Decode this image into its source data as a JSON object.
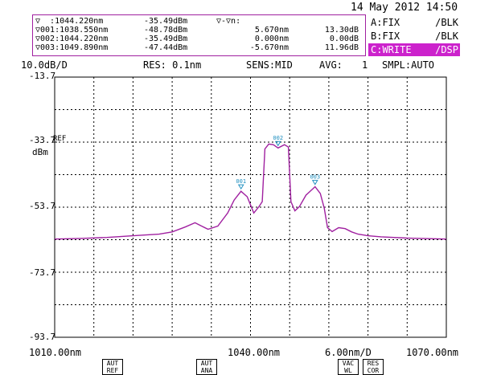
{
  "header": {
    "datetime": "14 May 2012 14:50"
  },
  "markers": {
    "rows": [
      {
        "label": "▽  :1044.220nm",
        "level": "-35.49dBm",
        "delta_wl": "▽-▽n:",
        "delta_lvl": ""
      },
      {
        "label": "▽001:1038.550nm",
        "level": "-48.78dBm",
        "delta_wl": "5.670nm",
        "delta_lvl": "13.30dB"
      },
      {
        "label": "▽002:1044.220nm",
        "level": "-35.49dBm",
        "delta_wl": "0.000nm",
        "delta_lvl": "0.00dB"
      },
      {
        "label": "▽003:1049.890nm",
        "level": "-47.44dBm",
        "delta_wl": "-5.670nm",
        "delta_lvl": "11.96dB"
      }
    ]
  },
  "traces": [
    {
      "mode": "A:FIX",
      "disp": "/BLK",
      "active": false
    },
    {
      "mode": "B:FIX",
      "disp": "/BLK",
      "active": false
    },
    {
      "mode": "C:WRITE",
      "disp": "/DSP",
      "active": true
    }
  ],
  "settings": {
    "scale": "10.0dB/D",
    "resolution": "RES: 0.1nm",
    "sensitivity": "SENS:MID",
    "average_label": "AVG:",
    "average_value": "1",
    "sampling": "SMPL:AUTO"
  },
  "axis": {
    "y_ticks": [
      "-13.7",
      "-33.7",
      "-53.7",
      "-73.7",
      "-93.7"
    ],
    "ref_label": "REF",
    "y_unit": "dBm",
    "x_start": "1010.00nm",
    "x_center": "1040.00nm",
    "x_span": "6.00nm/D",
    "x_stop": "1070.00nm"
  },
  "marker_tags": [
    "001",
    "002",
    "003"
  ],
  "softkeys": [
    {
      "line1": "AUT",
      "line2": "REF"
    },
    {
      "line1": "AUT",
      "line2": "ANA"
    },
    {
      "line1": "VAC",
      "line2": "WL"
    },
    {
      "line1": "RES",
      "line2": "COR"
    }
  ],
  "colors": {
    "trace": "#a020a0",
    "grid": "#000000",
    "marker": "#2090c0",
    "active_bg": "#cc22cc"
  },
  "chart_data": {
    "type": "line",
    "title": "",
    "xlabel": "",
    "ylabel": "dBm",
    "xlim": [
      1010.0,
      1070.0
    ],
    "ylim": [
      -93.7,
      -13.7
    ],
    "series": [
      {
        "name": "",
        "x": [
          1010,
          1014,
          1018,
          1022,
          1026,
          1028,
          1030,
          1031.5,
          1032.5,
          1033.5,
          1035,
          1036.5,
          1037.5,
          1038.55,
          1039.5,
          1040.5,
          1041.3,
          1041.8,
          1042.2,
          1042.8,
          1043.5,
          1044.22,
          1045.2,
          1045.8,
          1046.2,
          1046.8,
          1047.5,
          1048.5,
          1049.89,
          1050.7,
          1051.3,
          1051.8,
          1052.5,
          1053.5,
          1054.5,
          1055.5,
          1056.5,
          1058,
          1060,
          1064,
          1070
        ],
        "y": [
          -63.5,
          -63.3,
          -63.0,
          -62.5,
          -62.0,
          -61.3,
          -59.8,
          -58.5,
          -59.5,
          -60.5,
          -59.5,
          -55.5,
          -51.5,
          -48.8,
          -50.5,
          -55.5,
          -53.5,
          -52.0,
          -35.8,
          -34.3,
          -34.5,
          -35.5,
          -34.5,
          -35.2,
          -52.0,
          -54.8,
          -53.5,
          -50.0,
          -47.4,
          -49.5,
          -54.0,
          -60.0,
          -61.2,
          -60.0,
          -60.3,
          -61.3,
          -62.0,
          -62.5,
          -62.8,
          -63.2,
          -63.5
        ]
      }
    ],
    "markers": [
      {
        "id": "001",
        "x": 1038.55,
        "y": -48.78
      },
      {
        "id": "002",
        "x": 1044.22,
        "y": -35.49
      },
      {
        "id": "003",
        "x": 1049.89,
        "y": -47.44
      }
    ],
    "grid": true,
    "legend": "none"
  }
}
